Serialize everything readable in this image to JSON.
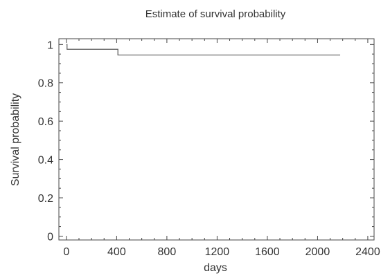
{
  "chart_data": {
    "type": "line",
    "title": "Estimate of survival probability",
    "xlabel": "days",
    "ylabel": "Survival probability",
    "xlim": [
      -60,
      2450
    ],
    "ylim": [
      -0.02,
      1.03
    ],
    "xticks": [
      0,
      400,
      800,
      1200,
      1600,
      2000,
      2400
    ],
    "yticks": [
      0,
      0.2,
      0.4,
      0.6,
      0.8,
      1
    ],
    "grid": false,
    "series": [
      {
        "step": "post",
        "color": "#555555",
        "x": [
          0,
          5,
          410,
          2180
        ],
        "y": [
          1.0,
          0.975,
          0.945,
          0.945
        ]
      }
    ]
  }
}
